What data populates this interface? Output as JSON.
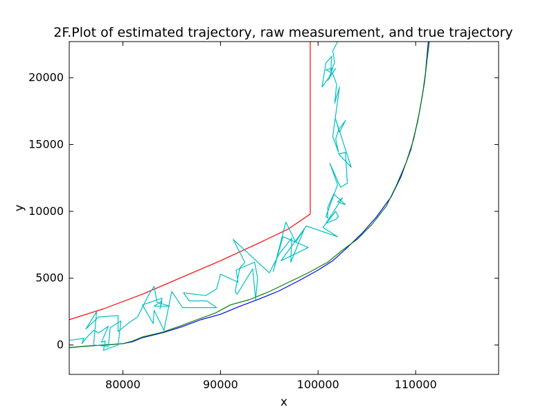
{
  "chart_data": {
    "type": "line",
    "title": "2F.Plot of estimated trajectory, raw measurement, and true trajectory",
    "xlabel": "x",
    "ylabel": "y",
    "xlim": [
      74500,
      118500
    ],
    "ylim": [
      -2200,
      22700
    ],
    "xticks": [
      80000,
      90000,
      100000,
      110000
    ],
    "yticks": [
      0,
      5000,
      10000,
      15000,
      20000
    ],
    "grid": false,
    "legend": "none",
    "series": [
      {
        "color": "#ff0000",
        "points": [
          [
            74500,
            1900
          ],
          [
            78000,
            2700
          ],
          [
            82000,
            3800
          ],
          [
            86000,
            5050
          ],
          [
            90000,
            6300
          ],
          [
            94000,
            7650
          ],
          [
            97000,
            8700
          ],
          [
            99200,
            9800
          ],
          [
            99200,
            22700
          ]
        ]
      },
      {
        "color": "#0000ff",
        "points": [
          [
            74500,
            -200
          ],
          [
            76000,
            -100
          ],
          [
            78000,
            0
          ],
          [
            80000,
            100
          ],
          [
            81000,
            250
          ],
          [
            82000,
            550
          ],
          [
            84000,
            900
          ],
          [
            86000,
            1350
          ],
          [
            88000,
            1900
          ],
          [
            90000,
            2300
          ],
          [
            92000,
            2900
          ],
          [
            94000,
            3450
          ],
          [
            96000,
            4050
          ],
          [
            98000,
            4800
          ],
          [
            100000,
            5600
          ],
          [
            101500,
            6300
          ],
          [
            103000,
            7300
          ],
          [
            104500,
            8350
          ],
          [
            106000,
            9600
          ],
          [
            107500,
            11100
          ],
          [
            108500,
            12600
          ],
          [
            109500,
            14600
          ],
          [
            110200,
            16700
          ],
          [
            110700,
            18700
          ],
          [
            111000,
            20300
          ],
          [
            111300,
            22700
          ]
        ]
      },
      {
        "color": "#008000",
        "points": [
          [
            74500,
            -200
          ],
          [
            76000,
            -100
          ],
          [
            78000,
            0
          ],
          [
            80000,
            100
          ],
          [
            81000,
            300
          ],
          [
            82000,
            600
          ],
          [
            84000,
            950
          ],
          [
            86000,
            1450
          ],
          [
            88000,
            2000
          ],
          [
            89500,
            2400
          ],
          [
            91000,
            3000
          ],
          [
            93000,
            3400
          ],
          [
            95000,
            4000
          ],
          [
            97000,
            4700
          ],
          [
            99000,
            5400
          ],
          [
            101000,
            6200
          ],
          [
            102500,
            7100
          ],
          [
            104000,
            7900
          ],
          [
            105500,
            9000
          ],
          [
            107000,
            10400
          ],
          [
            108000,
            11900
          ],
          [
            109000,
            13600
          ],
          [
            109800,
            15400
          ],
          [
            110400,
            17500
          ],
          [
            110900,
            19600
          ],
          [
            111200,
            21500
          ],
          [
            111400,
            22700
          ]
        ]
      },
      {
        "color": "#00bfbf",
        "points": [
          [
            74500,
            350
          ],
          [
            76000,
            500
          ],
          [
            75800,
            100
          ],
          [
            76200,
            500
          ],
          [
            77000,
            1100
          ],
          [
            77500,
            900
          ],
          [
            78500,
            1400
          ],
          [
            77800,
            200
          ],
          [
            78200,
            300
          ],
          [
            78000,
            -400
          ],
          [
            79500,
            0
          ],
          [
            79800,
            1800
          ],
          [
            78700,
            1300
          ],
          [
            78500,
            -100
          ],
          [
            77000,
            0
          ],
          [
            77300,
            2500
          ],
          [
            76800,
            1900
          ],
          [
            76200,
            1200
          ],
          [
            77500,
            2100
          ],
          [
            79500,
            2200
          ],
          [
            79500,
            1000
          ],
          [
            80500,
            1600
          ],
          [
            81500,
            2100
          ],
          [
            82600,
            3700
          ],
          [
            83200,
            4400
          ],
          [
            83500,
            3200
          ],
          [
            84800,
            2900
          ],
          [
            83200,
            2900
          ],
          [
            84000,
            3300
          ],
          [
            83800,
            2700
          ],
          [
            84000,
            3500
          ],
          [
            82000,
            3000
          ],
          [
            83100,
            1600
          ],
          [
            83200,
            2600
          ],
          [
            84200,
            1100
          ],
          [
            85000,
            4000
          ],
          [
            86100,
            2800
          ],
          [
            89600,
            2800
          ],
          [
            88600,
            3300
          ],
          [
            86800,
            3300
          ],
          [
            86200,
            3900
          ],
          [
            88500,
            3700
          ],
          [
            89600,
            4200
          ],
          [
            90000,
            5300
          ],
          [
            91800,
            4700
          ],
          [
            91600,
            5600
          ],
          [
            93500,
            6200
          ],
          [
            93800,
            5000
          ],
          [
            93600,
            3400
          ],
          [
            93300,
            5700
          ],
          [
            91700,
            3800
          ],
          [
            91500,
            4000
          ],
          [
            92000,
            5800
          ],
          [
            92500,
            6200
          ],
          [
            91300,
            7900
          ],
          [
            95000,
            5400
          ],
          [
            96000,
            6800
          ],
          [
            97300,
            8000
          ],
          [
            97200,
            6200
          ],
          [
            98600,
            8700
          ],
          [
            97700,
            7700
          ],
          [
            96700,
            9200
          ],
          [
            95400,
            5500
          ],
          [
            96400,
            8100
          ],
          [
            99000,
            7300
          ],
          [
            96200,
            6300
          ],
          [
            98800,
            8900
          ],
          [
            102000,
            8100
          ],
          [
            100500,
            8800
          ],
          [
            101800,
            10000
          ],
          [
            102100,
            9600
          ],
          [
            101800,
            9400
          ],
          [
            100800,
            9100
          ],
          [
            102500,
            11000
          ],
          [
            102000,
            10700
          ],
          [
            102800,
            10500
          ],
          [
            101600,
            11300
          ],
          [
            101000,
            10300
          ],
          [
            101000,
            9500
          ],
          [
            100800,
            9600
          ],
          [
            102000,
            12000
          ],
          [
            101200,
            13600
          ],
          [
            102300,
            11800
          ],
          [
            103000,
            12100
          ],
          [
            102800,
            14400
          ],
          [
            102100,
            14300
          ],
          [
            103400,
            13300
          ],
          [
            101800,
            16900
          ],
          [
            102200,
            15900
          ],
          [
            102800,
            16800
          ],
          [
            102100,
            16100
          ],
          [
            101800,
            15400
          ],
          [
            102100,
            14400
          ],
          [
            101500,
            15600
          ],
          [
            102200,
            19300
          ],
          [
            101700,
            18100
          ],
          [
            101900,
            19500
          ],
          [
            101500,
            20300
          ],
          [
            100800,
            20600
          ],
          [
            101500,
            20700
          ],
          [
            101000,
            19800
          ],
          [
            101800,
            20700
          ],
          [
            100400,
            19300
          ],
          [
            100800,
            21100
          ],
          [
            101400,
            21600
          ],
          [
            101300,
            20500
          ],
          [
            101700,
            21100
          ],
          [
            101500,
            22000
          ],
          [
            102000,
            22700
          ]
        ]
      }
    ]
  }
}
